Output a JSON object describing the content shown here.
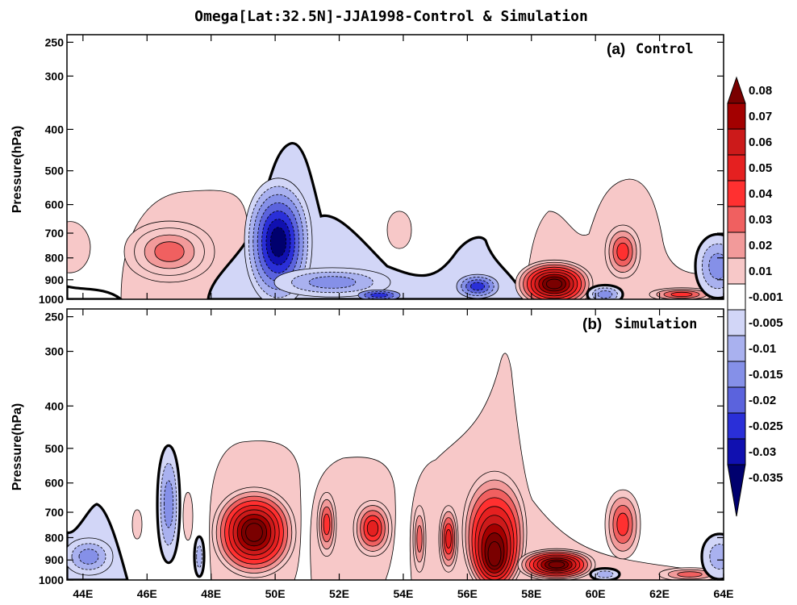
{
  "chart_data": {
    "type": "contour",
    "title": "Omega[Lat:32.5N]-JJA1998-Control & Simulation",
    "ylabel": "Pressure(hPa)",
    "x_ticks": [
      "44E",
      "46E",
      "48E",
      "50E",
      "52E",
      "54E",
      "56E",
      "58E",
      "60E",
      "62E",
      "64E"
    ],
    "x_values": [
      44,
      46,
      48,
      50,
      52,
      54,
      56,
      58,
      60,
      62,
      64
    ],
    "xlim": [
      43.5,
      64
    ],
    "ylim": [
      1000,
      240
    ],
    "y_scale": "log",
    "y_ticks": [
      250,
      300,
      400,
      500,
      600,
      700,
      800,
      900,
      1000
    ],
    "colorbar": {
      "labels": [
        "0.08",
        "0.07",
        "0.06",
        "0.05",
        "0.04",
        "0.03",
        "0.02",
        "0.01",
        "-0.001",
        "-0.005",
        "-0.01",
        "-0.015",
        "-0.02",
        "-0.025",
        "-0.03",
        "-0.035"
      ],
      "colors": [
        "#7a0000",
        "#a30000",
        "#cc1a1a",
        "#e52020",
        "#ff3030",
        "#f06060",
        "#f29a9a",
        "#f7c8c8",
        "#ffffff",
        "#d2d6f7",
        "#a9b1ef",
        "#8590e8",
        "#5b63dd",
        "#2a2fd8",
        "#1010b0",
        "#00006e"
      ]
    },
    "panels": [
      {
        "label_letter": "(a)",
        "label_name": "Control",
        "features": [
          {
            "sign": "positive",
            "center_lon": 46.8,
            "center_p": 790,
            "peak": 0.03
          },
          {
            "sign": "negative",
            "center_lon": 50.1,
            "center_p": 780,
            "peak": -0.035
          },
          {
            "sign": "negative",
            "center_lon": 56.5,
            "center_p": 940,
            "peak": -0.02
          },
          {
            "sign": "positive",
            "center_lon": 58.6,
            "center_p": 950,
            "peak": 0.08
          },
          {
            "sign": "positive",
            "center_lon": 60.9,
            "center_p": 790,
            "peak": 0.03
          }
        ]
      },
      {
        "label_letter": "(b)",
        "label_name": "Simulation",
        "features": [
          {
            "sign": "positive",
            "center_lon": 49.3,
            "center_p": 760,
            "peak": 0.05
          },
          {
            "sign": "positive",
            "center_lon": 53.0,
            "center_p": 760,
            "peak": 0.04
          },
          {
            "sign": "positive",
            "center_lon": 57.1,
            "center_p": 780,
            "peak": 0.08
          },
          {
            "sign": "positive",
            "center_lon": 59.1,
            "center_p": 960,
            "peak": 0.08
          },
          {
            "sign": "negative",
            "center_lon": 46.7,
            "center_p": 720,
            "peak": -0.01
          }
        ]
      }
    ]
  }
}
